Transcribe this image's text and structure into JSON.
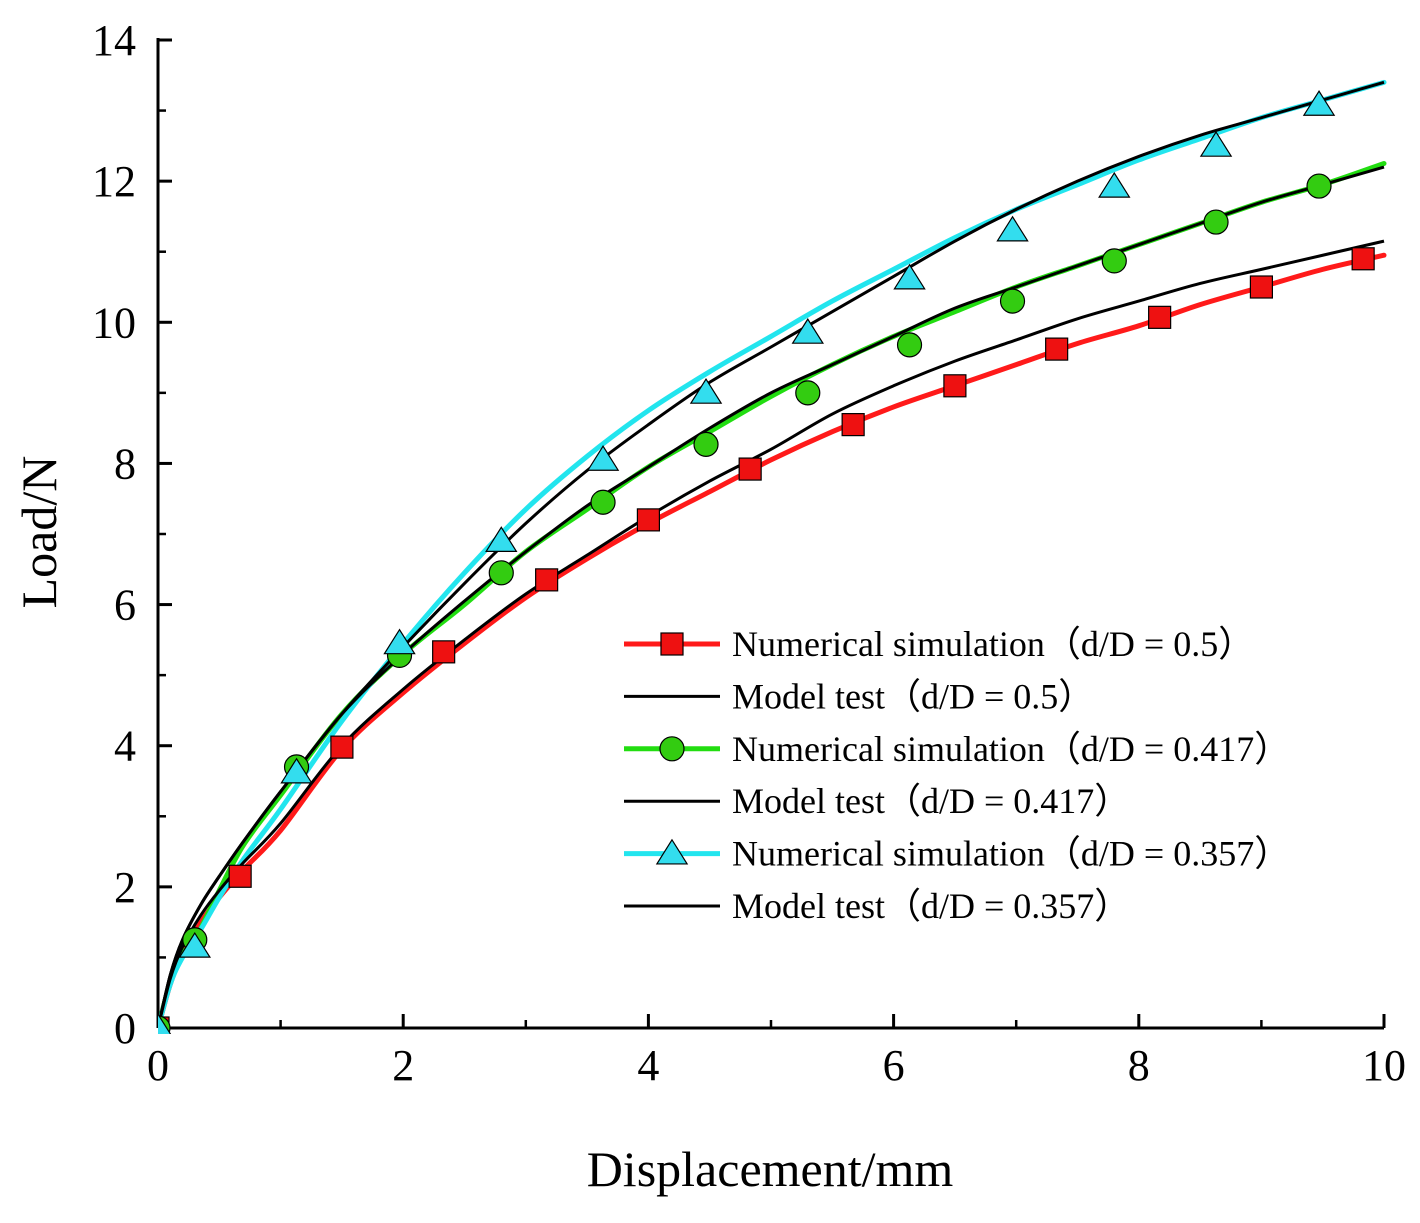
{
  "chart_data": {
    "type": "line",
    "xlabel": "Displacement/mm",
    "ylabel": "Load/N",
    "xlim": [
      0,
      10
    ],
    "ylim": [
      0,
      14
    ],
    "x_ticks": [
      0,
      2,
      4,
      6,
      8,
      10
    ],
    "y_ticks": [
      0,
      2,
      4,
      6,
      8,
      10,
      12,
      14
    ],
    "legend_position": "lower-right",
    "series": [
      {
        "name": "Numerical simulation（d/D = 0.5）",
        "kind": "simulation",
        "color": "#ff1a1a",
        "marker": "square",
        "marker_fill": "#ee1111",
        "x": [
          0.0,
          0.1,
          0.2,
          0.35,
          0.5,
          0.7,
          1.0,
          1.5,
          2.0,
          2.5,
          3.0,
          3.5,
          4.0,
          4.5,
          5.0,
          5.5,
          6.0,
          6.5,
          7.0,
          7.5,
          8.0,
          8.5,
          9.0,
          9.5,
          10.0
        ],
        "y": [
          0.0,
          0.62,
          1.05,
          1.5,
          1.85,
          2.25,
          2.8,
          3.95,
          4.75,
          5.45,
          6.1,
          6.65,
          7.15,
          7.6,
          8.05,
          8.45,
          8.8,
          9.1,
          9.4,
          9.7,
          9.95,
          10.25,
          10.5,
          10.75,
          10.95
        ]
      },
      {
        "name": "Model test（d/D = 0.5）",
        "kind": "test",
        "color": "#000000",
        "x": [
          0.0,
          0.1,
          0.2,
          0.35,
          0.5,
          0.7,
          1.0,
          1.5,
          2.0,
          2.5,
          3.0,
          3.5,
          4.0,
          4.5,
          5.0,
          5.5,
          6.0,
          6.5,
          7.0,
          7.5,
          8.0,
          8.5,
          9.0,
          9.5,
          10.0
        ],
        "y": [
          0.0,
          0.7,
          1.15,
          1.6,
          1.95,
          2.35,
          2.9,
          4.0,
          4.8,
          5.5,
          6.15,
          6.7,
          7.25,
          7.75,
          8.2,
          8.7,
          9.1,
          9.45,
          9.75,
          10.05,
          10.3,
          10.55,
          10.75,
          10.95,
          11.15
        ]
      },
      {
        "name": "Numerical simulation（d/D = 0.417）",
        "kind": "simulation",
        "color": "#22dd11",
        "marker": "circle",
        "marker_fill": "#33cc11",
        "x": [
          0.0,
          0.1,
          0.2,
          0.3,
          0.5,
          0.7,
          1.0,
          1.5,
          2.0,
          2.5,
          3.0,
          3.5,
          4.0,
          4.5,
          5.0,
          5.5,
          6.0,
          6.5,
          7.0,
          7.5,
          8.0,
          8.5,
          9.0,
          9.5,
          10.0
        ],
        "y": [
          0.0,
          0.65,
          1.05,
          1.25,
          1.95,
          2.6,
          3.3,
          4.45,
          5.3,
          6.0,
          6.75,
          7.35,
          7.95,
          8.45,
          8.95,
          9.4,
          9.8,
          10.15,
          10.5,
          10.8,
          11.1,
          11.4,
          11.7,
          11.95,
          12.25
        ]
      },
      {
        "name": "Model test（d/D = 0.417）",
        "kind": "test",
        "color": "#000000",
        "x": [
          0.0,
          0.1,
          0.2,
          0.35,
          0.5,
          0.7,
          1.0,
          1.5,
          2.0,
          2.5,
          3.0,
          3.5,
          4.0,
          4.5,
          5.0,
          5.5,
          6.0,
          6.5,
          7.0,
          7.5,
          8.0,
          8.5,
          9.0,
          9.5,
          10.0
        ],
        "y": [
          0.0,
          0.75,
          1.25,
          1.75,
          2.15,
          2.65,
          3.35,
          4.45,
          5.3,
          6.05,
          6.75,
          7.4,
          7.95,
          8.5,
          9.0,
          9.4,
          9.8,
          10.2,
          10.5,
          10.8,
          11.1,
          11.4,
          11.7,
          11.95,
          12.2
        ]
      },
      {
        "name": "Numerical simulation（d/D = 0.357）",
        "kind": "simulation",
        "color": "#22e5ee",
        "marker": "triangle",
        "marker_fill": "#33ddee",
        "x": [
          0.0,
          0.1,
          0.2,
          0.35,
          0.5,
          0.7,
          1.0,
          1.5,
          2.0,
          2.5,
          3.0,
          3.5,
          4.0,
          4.5,
          5.0,
          5.5,
          6.0,
          6.5,
          7.0,
          7.5,
          8.0,
          8.5,
          9.0,
          9.5,
          10.0
        ],
        "y": [
          0.0,
          0.62,
          1.0,
          1.4,
          1.85,
          2.4,
          3.1,
          4.35,
          5.45,
          6.45,
          7.35,
          8.1,
          8.75,
          9.3,
          9.8,
          10.3,
          10.75,
          11.2,
          11.6,
          11.95,
          12.3,
          12.6,
          12.9,
          13.15,
          13.4
        ]
      },
      {
        "name": "Model test（d/D = 0.357）",
        "kind": "test",
        "color": "#000000",
        "x": [
          0.0,
          0.1,
          0.2,
          0.35,
          0.5,
          0.7,
          1.0,
          1.5,
          2.0,
          2.5,
          3.0,
          3.5,
          4.0,
          4.5,
          5.0,
          5.5,
          6.0,
          6.5,
          7.0,
          7.5,
          8.0,
          8.5,
          9.0,
          9.5,
          10.0
        ],
        "y": [
          0.0,
          0.75,
          1.25,
          1.75,
          2.15,
          2.65,
          3.35,
          4.45,
          5.4,
          6.3,
          7.15,
          7.9,
          8.55,
          9.15,
          9.65,
          10.15,
          10.65,
          11.15,
          11.6,
          12.0,
          12.35,
          12.65,
          12.9,
          13.15,
          13.4
        ]
      }
    ],
    "marker_points": {
      "Numerical simulation（d/D = 0.5）": {
        "x": [
          0.0,
          0.67,
          1.5,
          2.33,
          3.17,
          4.0,
          4.83,
          5.67,
          6.5,
          7.33,
          8.17,
          9.0,
          9.83
        ],
        "y": [
          0.0,
          2.15,
          3.98,
          5.33,
          6.35,
          7.2,
          7.92,
          8.55,
          9.1,
          9.62,
          10.07,
          10.5,
          10.9
        ]
      },
      "Numerical simulation（d/D = 0.417）": {
        "x": [
          0.0,
          0.3,
          1.13,
          1.97,
          2.8,
          3.63,
          4.47,
          5.3,
          6.13,
          6.97,
          7.8,
          8.63,
          9.47
        ],
        "y": [
          0.0,
          1.25,
          3.7,
          5.28,
          6.45,
          7.45,
          8.27,
          9.0,
          9.68,
          10.3,
          10.87,
          11.42,
          11.93
        ]
      },
      "Numerical simulation（d/D = 0.357）": {
        "x": [
          0.0,
          0.3,
          1.13,
          1.97,
          2.8,
          3.63,
          4.47,
          5.3,
          6.13,
          6.97,
          7.8,
          8.63,
          9.47
        ],
        "y": [
          0.0,
          1.15,
          3.62,
          5.45,
          6.9,
          8.05,
          9.0,
          9.85,
          10.62,
          11.3,
          11.92,
          12.5,
          13.08
        ]
      }
    }
  }
}
